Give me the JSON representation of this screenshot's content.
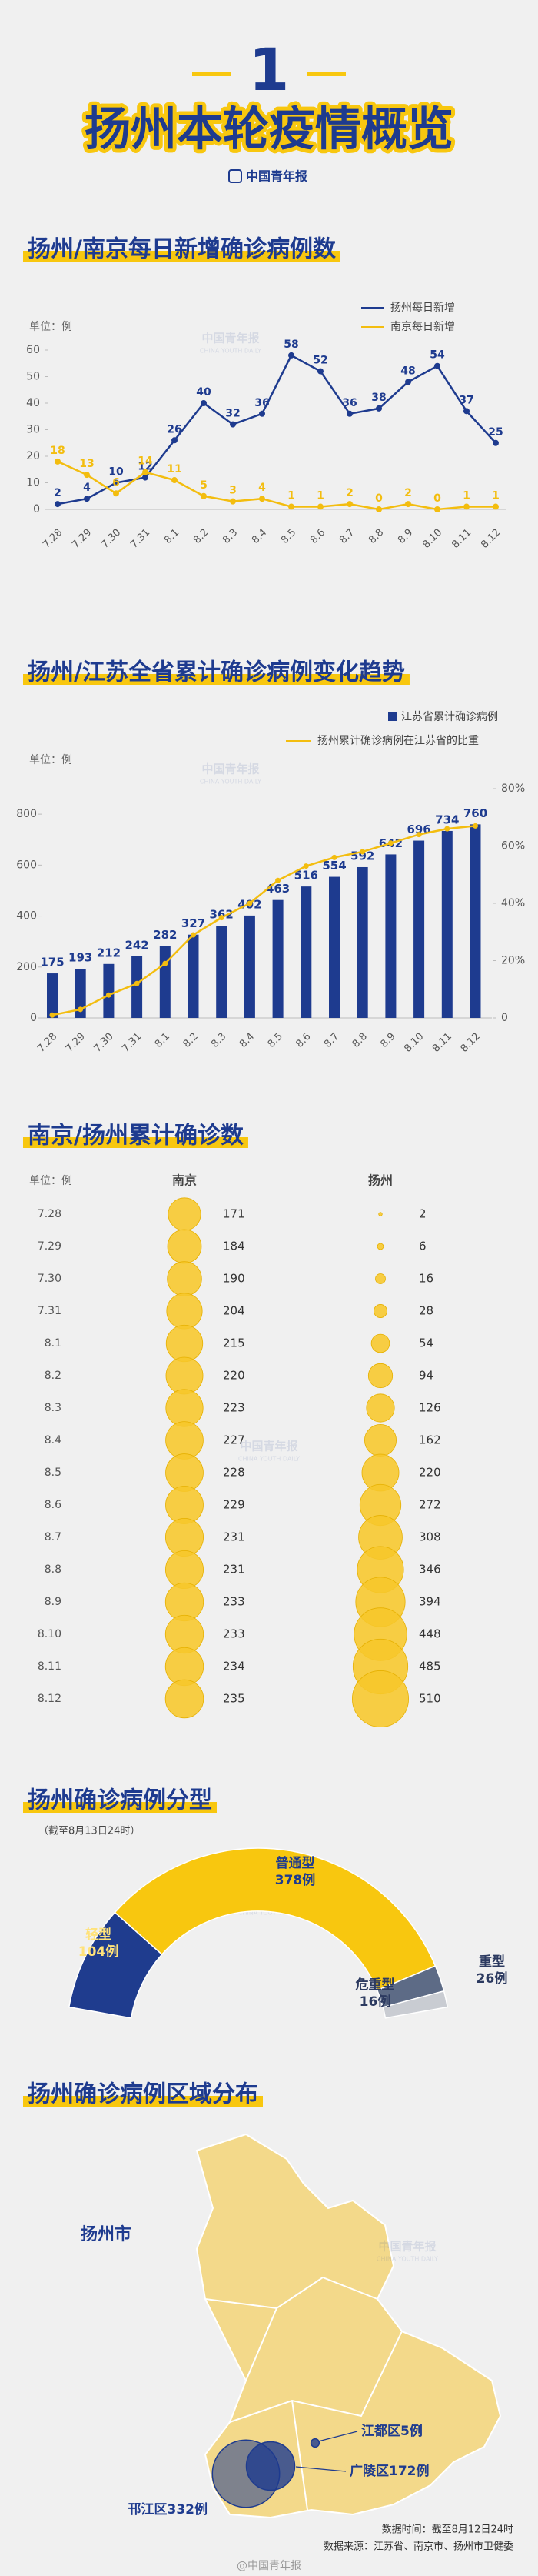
{
  "header": {
    "number": "1",
    "title": "扬州本轮疫情概览",
    "logo": "中国青年报",
    "logo_en": "CHINA YOUTH DAILY"
  },
  "chart_data": [
    {
      "type": "line",
      "title": "扬州/南京每日新增确诊病例数",
      "ylabel": "单位：例",
      "categories": [
        "7.28",
        "7.29",
        "7.30",
        "7.31",
        "8.1",
        "8.2",
        "8.3",
        "8.4",
        "8.5",
        "8.6",
        "8.7",
        "8.8",
        "8.9",
        "8.10",
        "8.11",
        "8.12"
      ],
      "series": [
        {
          "name": "扬州每日新增",
          "color": "#1e3b8f",
          "values": [
            2,
            4,
            10,
            12,
            26,
            40,
            32,
            36,
            58,
            52,
            36,
            38,
            48,
            54,
            37,
            25
          ]
        },
        {
          "name": "南京每日新增",
          "color": "#f3bd0f",
          "values": [
            18,
            13,
            6,
            14,
            11,
            5,
            3,
            4,
            1,
            1,
            2,
            0,
            2,
            0,
            1,
            1
          ]
        }
      ],
      "ylim": [
        0,
        60
      ],
      "yticks": [
        0,
        10,
        20,
        30,
        40,
        50,
        60
      ]
    },
    {
      "type": "bar",
      "title": "扬州/江苏全省累计确诊病例变化趋势",
      "ylabel": "单位：例",
      "categories": [
        "7.28",
        "7.29",
        "7.30",
        "7.31",
        "8.1",
        "8.2",
        "8.3",
        "8.4",
        "8.5",
        "8.6",
        "8.7",
        "8.8",
        "8.9",
        "8.10",
        "8.11",
        "8.12"
      ],
      "series": [
        {
          "name": "江苏省累计确诊病例",
          "color": "#1e3b8f",
          "values": [
            175,
            193,
            212,
            242,
            282,
            327,
            362,
            402,
            463,
            516,
            554,
            592,
            642,
            696,
            734,
            760
          ]
        },
        {
          "name": "扬州累计确诊病例在江苏省的比重",
          "color": "#f3bd0f",
          "axis": "y2",
          "values": [
            1,
            3,
            8,
            12,
            19,
            29,
            35,
            40,
            48,
            53,
            56,
            58,
            61,
            64,
            66,
            67
          ]
        }
      ],
      "ylim": [
        0,
        900
      ],
      "yticks": [
        0,
        200,
        400,
        600,
        800
      ],
      "y2lim": [
        0,
        80
      ],
      "y2ticks": [
        0,
        {
          "value": 20,
          "label": "20%"
        },
        {
          "value": 40,
          "label": "40%"
        },
        {
          "value": 60,
          "label": "60%"
        },
        {
          "value": 80,
          "label": "80%"
        }
      ]
    },
    {
      "type": "bubble",
      "title": "南京/扬州累计确诊数",
      "ylabel": "单位：例",
      "categories": [
        "7.28",
        "7.29",
        "7.30",
        "7.31",
        "8.1",
        "8.2",
        "8.3",
        "8.4",
        "8.5",
        "8.6",
        "8.7",
        "8.8",
        "8.9",
        "8.10",
        "8.11",
        "8.12"
      ],
      "series": [
        {
          "name": "南京",
          "color": "#f7c72a",
          "values": [
            171,
            184,
            190,
            204,
            215,
            220,
            223,
            227,
            228,
            229,
            231,
            231,
            233,
            233,
            234,
            235
          ]
        },
        {
          "name": "扬州",
          "color": "#f7c72a",
          "values": [
            2,
            6,
            16,
            28,
            54,
            94,
            126,
            162,
            220,
            272,
            308,
            346,
            394,
            448,
            485,
            510
          ]
        }
      ]
    },
    {
      "type": "pie",
      "title": "扬州确诊病例分型",
      "subtitle": "（截至8月13日24时）",
      "categories": [
        "轻型",
        "普通型",
        "重型",
        "危重型"
      ],
      "values": [
        104,
        378,
        26,
        16
      ],
      "value_labels": [
        "104例",
        "378例",
        "26例",
        "16例"
      ],
      "colors": [
        "#1f3c8e",
        "#f8c70f",
        "#5d6b86",
        "#c9ccd2"
      ]
    },
    {
      "type": "map",
      "title": "扬州确诊病例区域分布",
      "region": "扬州市",
      "categories": [
        "邗江区",
        "广陵区",
        "江都区"
      ],
      "values": [
        332,
        172,
        5
      ],
      "value_labels": [
        "332例",
        "172例",
        "5例"
      ],
      "map_color": "#f3d98a",
      "color": "#1e3b8f"
    }
  ],
  "footer": {
    "time": "数据时间：截至8月12日24时",
    "source": "数据来源：江苏省、南京市、扬州市卫健委",
    "credit": "@中国青年报"
  }
}
